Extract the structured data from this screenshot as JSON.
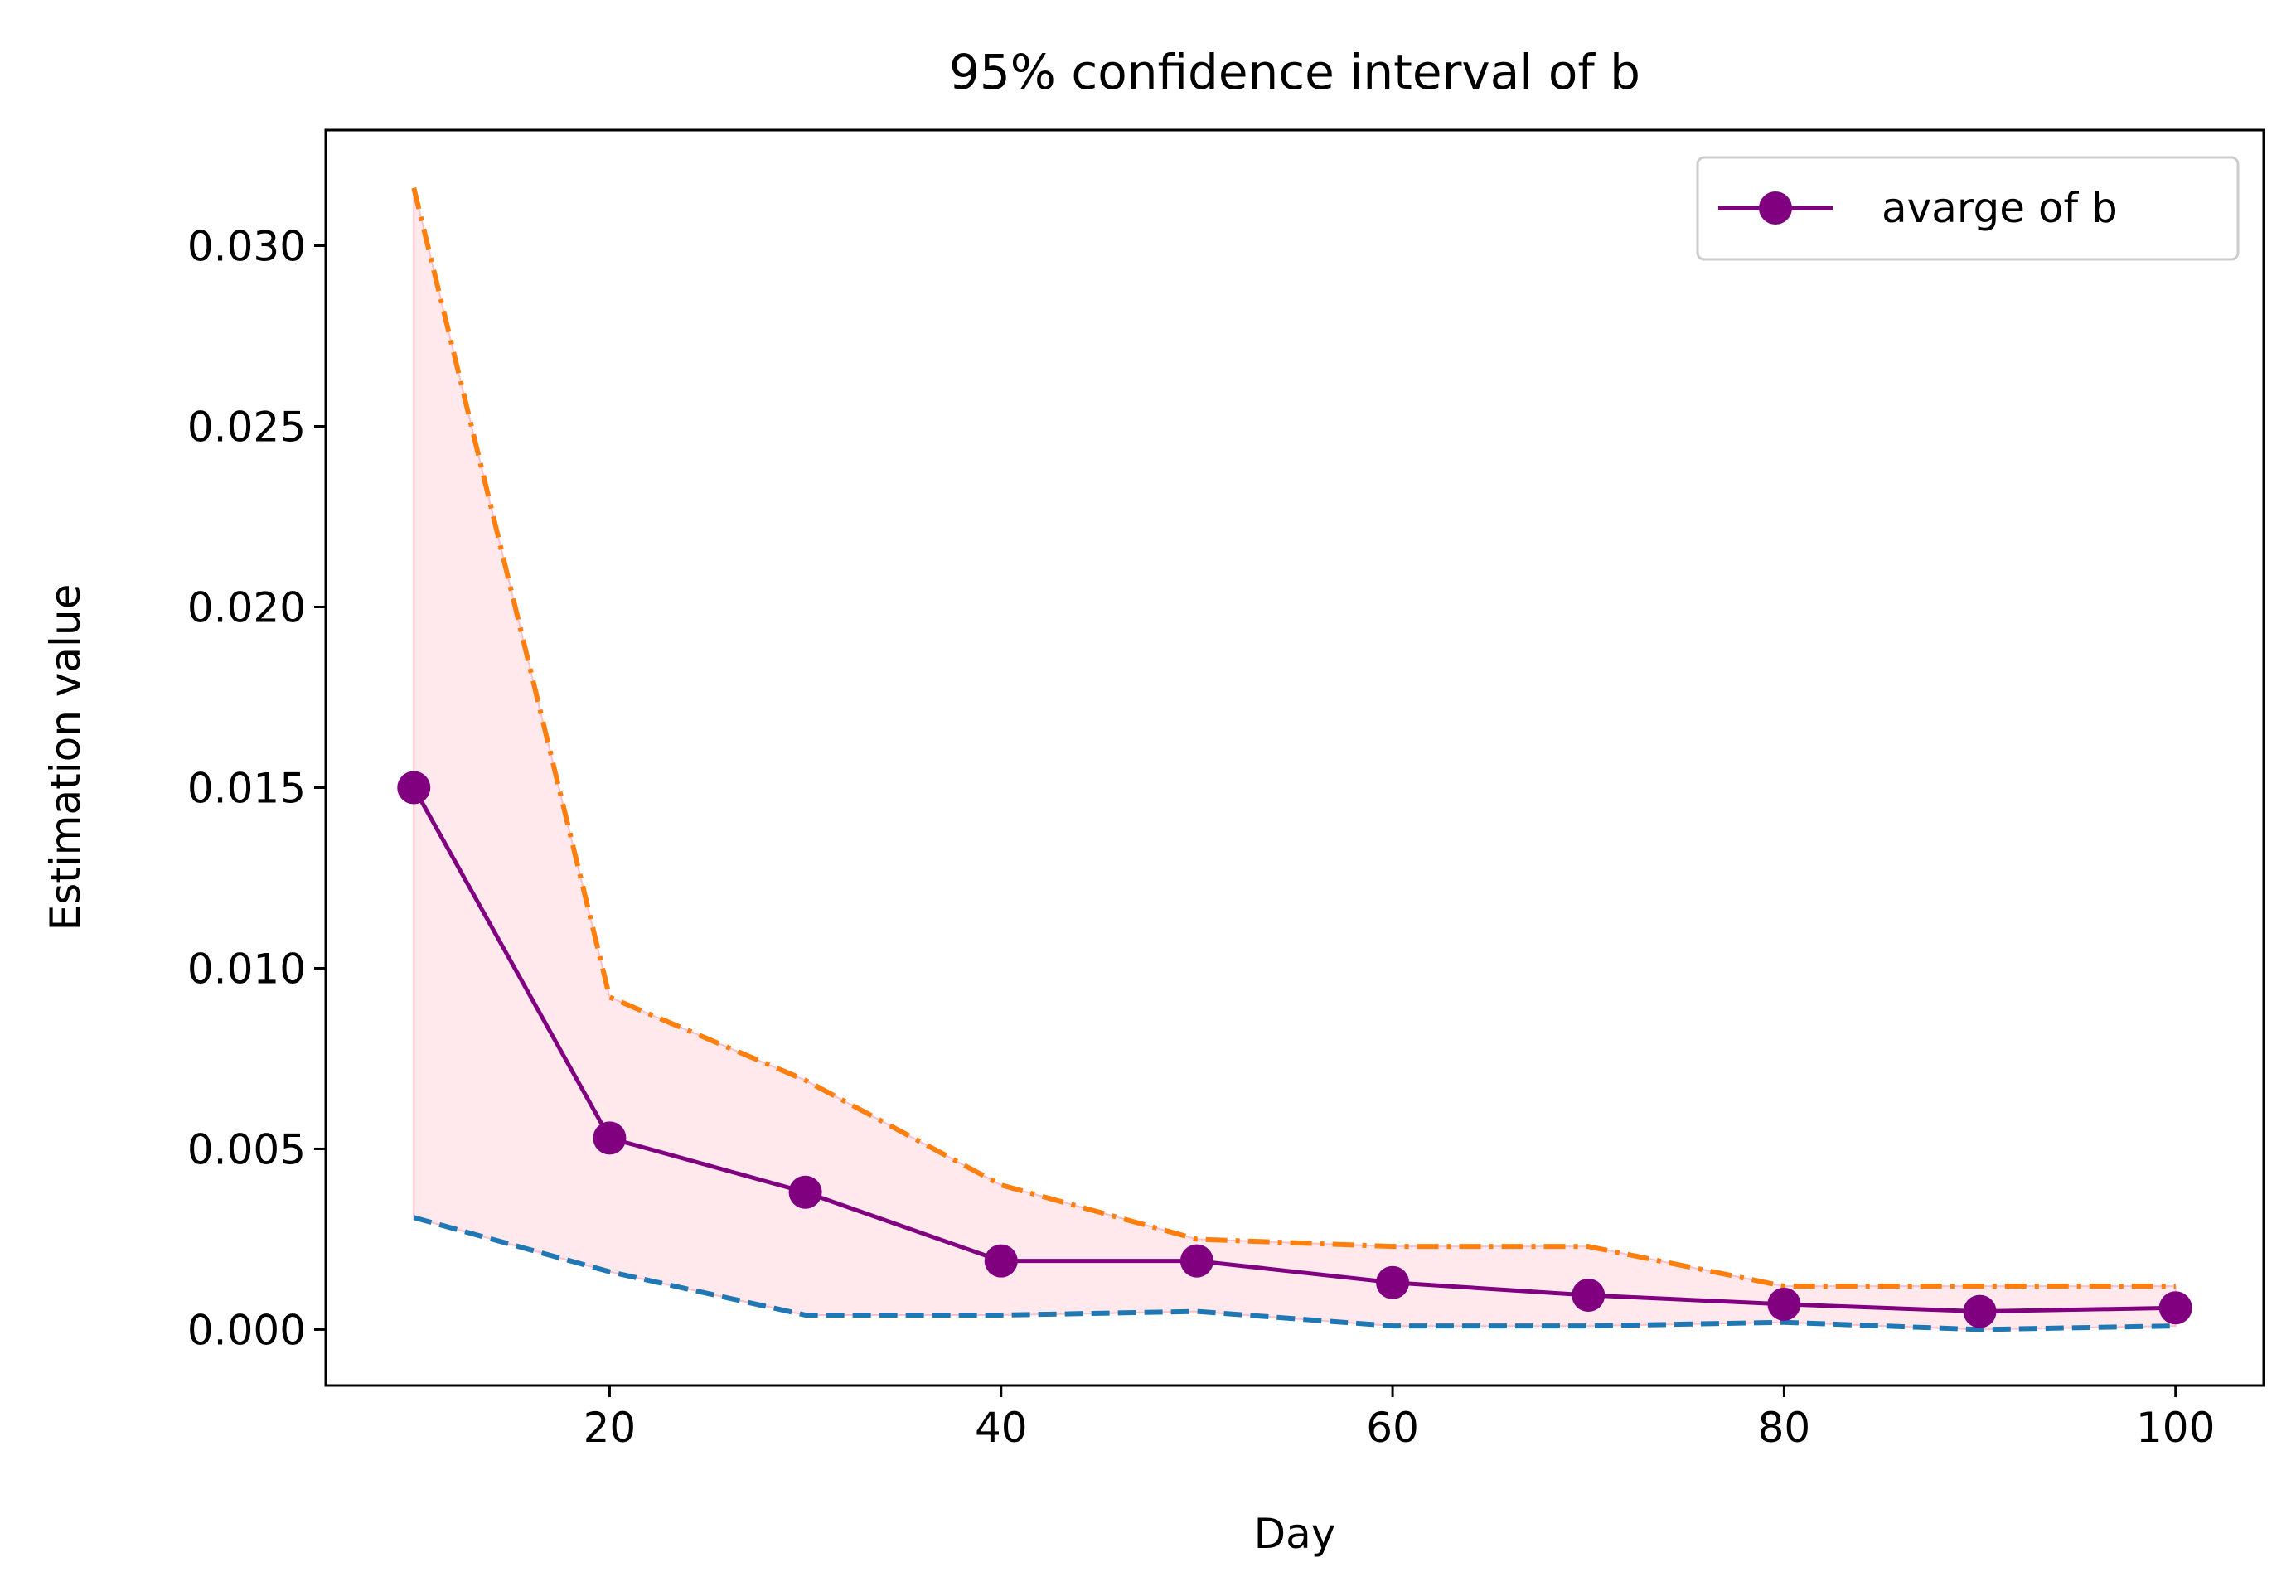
{
  "chart_data": {
    "type": "line",
    "title": "95% confidence interval of b",
    "xlabel": "Day",
    "ylabel": "Estimation value",
    "xlim": [
      5.5,
      104.5
    ],
    "ylim": [
      -0.00155,
      0.0332
    ],
    "x_ticks": [
      20,
      40,
      60,
      80,
      100
    ],
    "x_tick_labels": [
      "20",
      "40",
      "60",
      "80",
      "100"
    ],
    "y_ticks": [
      0.0,
      0.005,
      0.01,
      0.015,
      0.02,
      0.025,
      0.03
    ],
    "y_tick_labels": [
      "0.000",
      "0.005",
      "0.010",
      "0.015",
      "0.020",
      "0.025",
      "0.030"
    ],
    "grid": false,
    "legend_position": "top-right",
    "x": [
      10,
      20,
      30,
      40,
      50,
      60,
      70,
      80,
      90,
      100
    ],
    "series": [
      {
        "name": "avarge of b",
        "role": "mean",
        "line_style": "solid",
        "marker": "circle",
        "color": "#800080",
        "values": [
          0.015,
          0.0053,
          0.0038,
          0.0019,
          0.0019,
          0.0013,
          0.00095,
          0.0007,
          0.0005,
          0.0006
        ]
      },
      {
        "role": "upper-bound",
        "line_style": "dash-dot",
        "color": "#ff7f0e",
        "values": [
          0.0316,
          0.0092,
          0.0069,
          0.004,
          0.0025,
          0.0023,
          0.0023,
          0.0012,
          0.0012,
          0.0012
        ]
      },
      {
        "role": "lower-bound",
        "line_style": "dashed",
        "color": "#1f77b4",
        "values": [
          0.0031,
          0.0016,
          0.0004,
          0.0004,
          0.0005,
          0.0001,
          0.0001,
          0.0002,
          0.0,
          0.0001
        ]
      }
    ],
    "fill_between": {
      "color": "#ffc0cb",
      "opacity": 0.35,
      "between": [
        "lower-bound",
        "upper-bound"
      ]
    }
  }
}
